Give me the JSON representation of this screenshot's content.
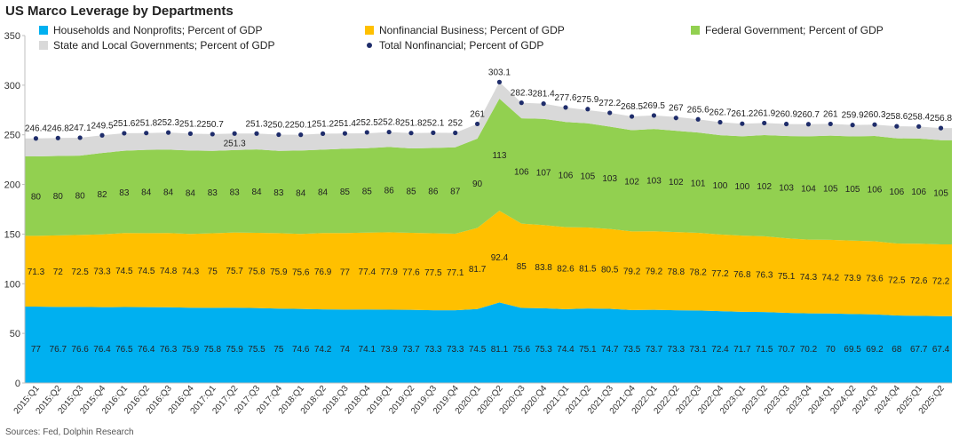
{
  "source_note": "Sources: Fed, Dolphin Research",
  "colors": {
    "households": "#00b0f0",
    "business": "#ffc000",
    "federal": "#92d050",
    "state_local": "#d9d9d9",
    "total_marker": "#1f2d6b"
  },
  "chart_data": {
    "type": "area",
    "stacked": true,
    "title": "US Marco Leverage by Departments",
    "xlabel": "",
    "ylabel": "",
    "ylim": [
      0,
      350
    ],
    "yticks": [
      0,
      50,
      100,
      150,
      200,
      250,
      300,
      350
    ],
    "grid": false,
    "legend_position": "top",
    "categories": [
      "2015:Q1",
      "2015:Q2",
      "2015:Q3",
      "2015:Q4",
      "2016:Q1",
      "2016:Q2",
      "2016:Q3",
      "2016:Q4",
      "2017:Q1",
      "2017:Q2",
      "2017:Q3",
      "2017:Q4",
      "2018:Q1",
      "2018:Q2",
      "2018:Q3",
      "2018:Q4",
      "2019:Q1",
      "2019:Q2",
      "2019:Q3",
      "2019:Q4",
      "2020:Q1",
      "2020:Q2",
      "2020:Q3",
      "2020:Q4",
      "2021:Q1",
      "2021:Q2",
      "2021:Q3",
      "2021:Q4",
      "2022:Q1",
      "2022:Q2",
      "2022:Q3",
      "2022:Q4",
      "2023:Q1",
      "2023:Q2",
      "2023:Q3",
      "2023:Q4",
      "2024:Q1",
      "2024:Q2",
      "2024:Q3",
      "2024:Q4",
      "2025:Q1",
      "2025:Q2"
    ],
    "series": [
      {
        "key": "households",
        "name": "Households and Nonprofits; Percent of GDP",
        "type": "area",
        "values": [
          77,
          76.7,
          76.6,
          76.4,
          76.5,
          76.4,
          76.3,
          75.9,
          75.8,
          75.9,
          75.5,
          75,
          74.6,
          74.2,
          74,
          74.1,
          73.9,
          73.7,
          73.3,
          73.3,
          74.5,
          81.1,
          75.6,
          75.3,
          74.4,
          75.1,
          74.7,
          73.5,
          73.7,
          73.3,
          73.1,
          72.4,
          71.7,
          71.5,
          70.7,
          70.2,
          70,
          69.5,
          69.2,
          68,
          67.7,
          67.4
        ]
      },
      {
        "key": "business",
        "name": "Nonfinancial Business; Percent of GDP",
        "type": "area",
        "values": [
          71.3,
          72,
          72.5,
          73.3,
          74.5,
          74.5,
          74.8,
          74.3,
          75,
          75.7,
          75.8,
          75.9,
          75.6,
          76.9,
          77,
          77.4,
          77.9,
          77.6,
          77.5,
          77.1,
          81.7,
          92.4,
          85,
          83.8,
          82.6,
          81.5,
          80.5,
          79.2,
          79.2,
          78.8,
          78.2,
          77.2,
          76.8,
          76.3,
          75.1,
          74.3,
          74.2,
          73.9,
          73.6,
          72.5,
          72.6,
          72.2
        ]
      },
      {
        "key": "federal",
        "name": "Federal Government; Percent of GDP",
        "type": "area",
        "values": [
          80,
          80,
          80,
          82,
          83,
          84,
          84,
          84,
          83,
          83,
          84,
          83,
          84,
          84,
          85,
          85,
          86,
          85,
          86,
          87,
          90,
          113,
          106,
          107,
          106,
          105,
          103,
          102,
          103,
          102,
          101,
          100,
          100,
          102,
          103,
          104,
          105,
          105,
          106,
          106,
          106,
          105
        ]
      },
      {
        "key": "state_local",
        "name": "State and Local Governments; Percent of GDP",
        "type": "area",
        "values": [
          18.1,
          18.1,
          18.0,
          17.8,
          17.6,
          16.9,
          17.2,
          17.0,
          16.9,
          16.7,
          16.0,
          16.3,
          15.9,
          16.1,
          15.4,
          15.0,
          15.0,
          15.5,
          15.3,
          14.6,
          14.8,
          16.6,
          15.7,
          15.3,
          14.6,
          13.3,
          14.0,
          13.8,
          13.6,
          13.9,
          13.3,
          13.1,
          12.7,
          12.1,
          12.1,
          12.2,
          11.8,
          11.5,
          11.5,
          12.1,
          12.1,
          12.2
        ]
      },
      {
        "key": "total",
        "name": "Total Nonfinancial; Percent of GDP",
        "type": "marker",
        "values": [
          246.4,
          246.8,
          247.1,
          249.5,
          251.6,
          251.8,
          252.3,
          251.2,
          250.7,
          251.3,
          251.3,
          250.2,
          250.1,
          251.2,
          251.4,
          252.5,
          252.8,
          251.8,
          252.1,
          252,
          261,
          303.1,
          282.3,
          281.4,
          277.6,
          275.9,
          272.2,
          268.5,
          269.5,
          267,
          265.6,
          262.7,
          261.2,
          261.9,
          260.9,
          260.7,
          261,
          259.9,
          260.3,
          258.6,
          258.4,
          256.8
        ]
      }
    ]
  }
}
